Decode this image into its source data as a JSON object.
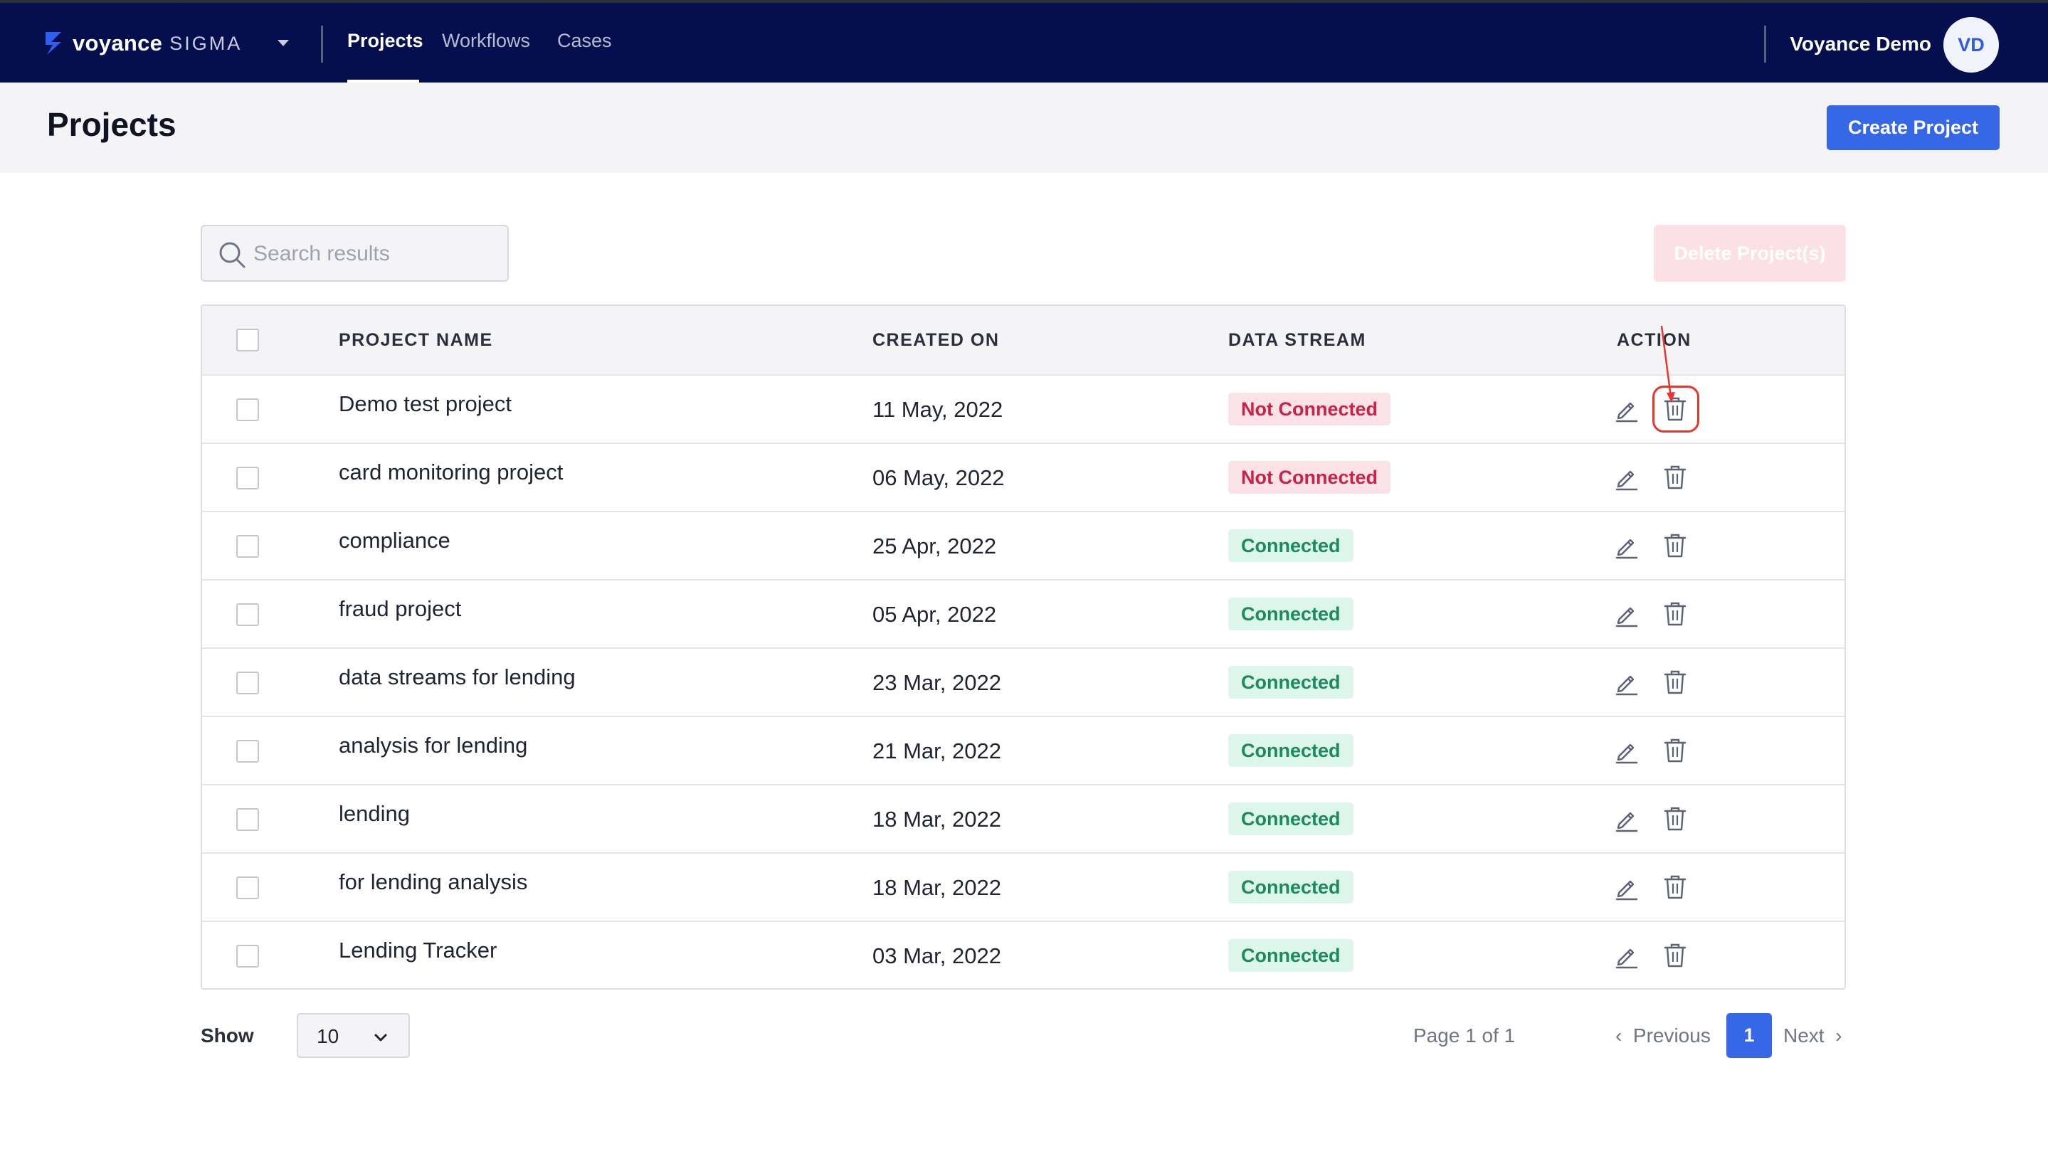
{
  "brand": {
    "name": "voyance",
    "product": "SIGMA"
  },
  "nav": {
    "tabs": [
      {
        "label": "Projects",
        "active": true
      },
      {
        "label": "Workflows"
      },
      {
        "label": "Cases"
      }
    ]
  },
  "user": {
    "name": "Voyance Demo",
    "initials": "VD"
  },
  "page": {
    "title": "Projects",
    "create_label": "Create Project"
  },
  "toolbar": {
    "search_placeholder": "Search results",
    "delete_label": "Delete Project(s)"
  },
  "table": {
    "headers": {
      "name": "PROJECT NAME",
      "created": "CREATED ON",
      "stream": "DATA STREAM",
      "action": "ACTION"
    },
    "rows": [
      {
        "name": "Demo test project",
        "created": "11 May, 2022",
        "stream": "Not Connected",
        "connected": false
      },
      {
        "name": "card monitoring project",
        "created": "06 May, 2022",
        "stream": "Not Connected",
        "connected": false
      },
      {
        "name": "compliance",
        "created": "25 Apr, 2022",
        "stream": "Connected",
        "connected": true
      },
      {
        "name": "fraud project",
        "created": "05 Apr, 2022",
        "stream": "Connected",
        "connected": true
      },
      {
        "name": "data streams for lending",
        "created": "23 Mar, 2022",
        "stream": "Connected",
        "connected": true
      },
      {
        "name": "analysis for lending",
        "created": "21 Mar, 2022",
        "stream": "Connected",
        "connected": true
      },
      {
        "name": "lending",
        "created": "18 Mar, 2022",
        "stream": "Connected",
        "connected": true
      },
      {
        "name": "for lending analysis",
        "created": "18 Mar, 2022",
        "stream": "Connected",
        "connected": true
      },
      {
        "name": "Lending Tracker",
        "created": "03 Mar, 2022",
        "stream": "Connected",
        "connected": true
      }
    ]
  },
  "footer": {
    "show_label": "Show",
    "page_size": "10",
    "page_info": "Page 1 of 1",
    "prev_label": "Previous",
    "current_page": "1",
    "next_label": "Next"
  },
  "colors": {
    "nav_bg": "#050f4d",
    "accent": "#3567e6",
    "danger": "#c8234a",
    "success": "#1b8a5c",
    "annotation": "#e8362c"
  },
  "icons": {
    "row_edit": "pencil-icon",
    "row_delete": "trash-icon",
    "search": "search-icon"
  }
}
